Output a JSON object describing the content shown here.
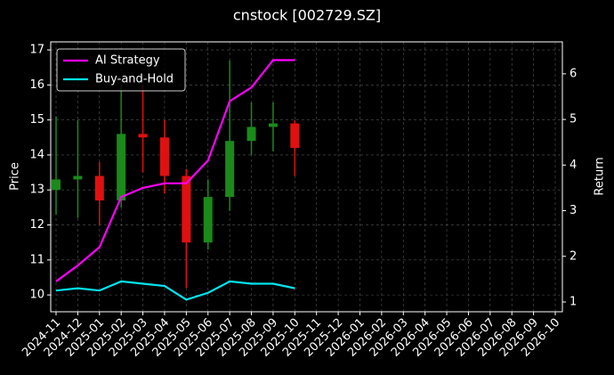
{
  "chart_data": {
    "type": "candlestick",
    "title": "cnstock [002729.SZ]",
    "ylabel": "Price",
    "y2label": "Return",
    "x": [
      "2024-11",
      "2024-12",
      "2025-01",
      "2025-02",
      "2025-03",
      "2025-04",
      "2025-05",
      "2025-06",
      "2025-07",
      "2025-08",
      "2025-09",
      "2025-10"
    ],
    "open": [
      13.0,
      13.3,
      13.4,
      12.7,
      14.6,
      14.5,
      13.4,
      11.5,
      12.8,
      14.4,
      14.8,
      14.9
    ],
    "high": [
      15.1,
      15.0,
      13.8,
      16.0,
      16.0,
      15.0,
      13.6,
      13.3,
      16.7,
      15.5,
      15.5,
      15.0
    ],
    "low": [
      12.3,
      12.2,
      12.0,
      12.5,
      13.5,
      12.9,
      10.2,
      11.3,
      12.4,
      14.0,
      14.1,
      13.4
    ],
    "close": [
      13.3,
      13.4,
      12.7,
      14.6,
      14.5,
      13.4,
      11.5,
      12.8,
      14.4,
      14.8,
      14.9,
      14.2
    ],
    "up_color": "#1a8a1a",
    "down_color": "#e01010",
    "series": [
      {
        "name": "AI Strategy",
        "color": "#ff00ff",
        "axis": "y2",
        "values": [
          1.45,
          1.8,
          2.2,
          3.3,
          3.5,
          3.6,
          3.6,
          4.1,
          5.4,
          5.7,
          6.3,
          6.3
        ]
      },
      {
        "name": "Buy-and-Hold",
        "color": "#00e5ee",
        "axis": "y2",
        "values": [
          1.25,
          1.3,
          1.25,
          1.45,
          1.4,
          1.35,
          1.05,
          1.2,
          1.45,
          1.4,
          1.4,
          1.3
        ]
      }
    ],
    "xlim": [
      "2024-11",
      "2026-10"
    ],
    "xticks": [
      "2024-11",
      "2024-12",
      "2025-01",
      "2025-02",
      "2025-03",
      "2025-04",
      "2025-05",
      "2025-06",
      "2025-07",
      "2025-08",
      "2025-09",
      "2025-10",
      "2025-11",
      "2025-12",
      "2026-01",
      "2026-02",
      "2026-03",
      "2026-04",
      "2026-05",
      "2026-06",
      "2026-07",
      "2026-08",
      "2026-09",
      "2026-10"
    ],
    "ylim": [
      9.52,
      17.23
    ],
    "yticks": [
      10,
      11,
      12,
      13,
      14,
      15,
      16,
      17
    ],
    "y2lim": [
      0.785,
      6.7
    ],
    "y2ticks": [
      1,
      2,
      3,
      4,
      5,
      6
    ],
    "grid": true,
    "legend": "upper-left"
  }
}
